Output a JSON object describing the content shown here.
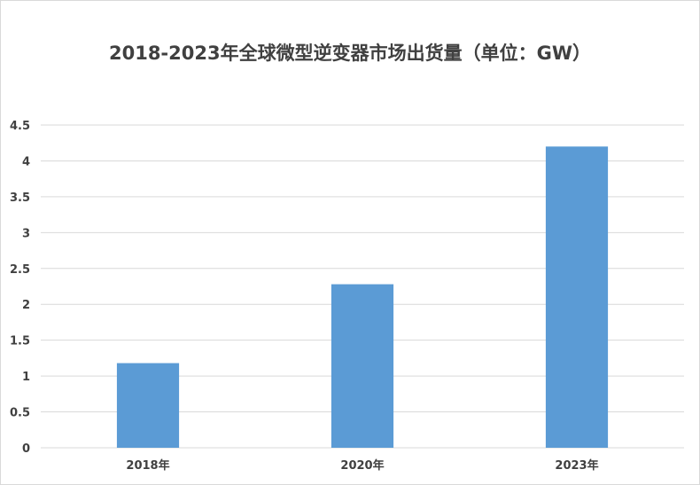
{
  "chart_data": {
    "type": "bar",
    "title": "2018-2023年全球微型逆变器市场出货量（单位：GW）",
    "categories": [
      "2018年",
      "2020年",
      "2023年"
    ],
    "values": [
      1.18,
      2.28,
      4.2
    ],
    "ylim": [
      0,
      4.5
    ],
    "yticks": [
      "0",
      "0.5",
      "1",
      "1.5",
      "2",
      "2.5",
      "3",
      "3.5",
      "4",
      "4.5"
    ],
    "xlabel": "",
    "ylabel": "",
    "grid": true,
    "legend": "none",
    "bar_color": "#5b9bd5",
    "grid_color": "#d9d9d9"
  }
}
